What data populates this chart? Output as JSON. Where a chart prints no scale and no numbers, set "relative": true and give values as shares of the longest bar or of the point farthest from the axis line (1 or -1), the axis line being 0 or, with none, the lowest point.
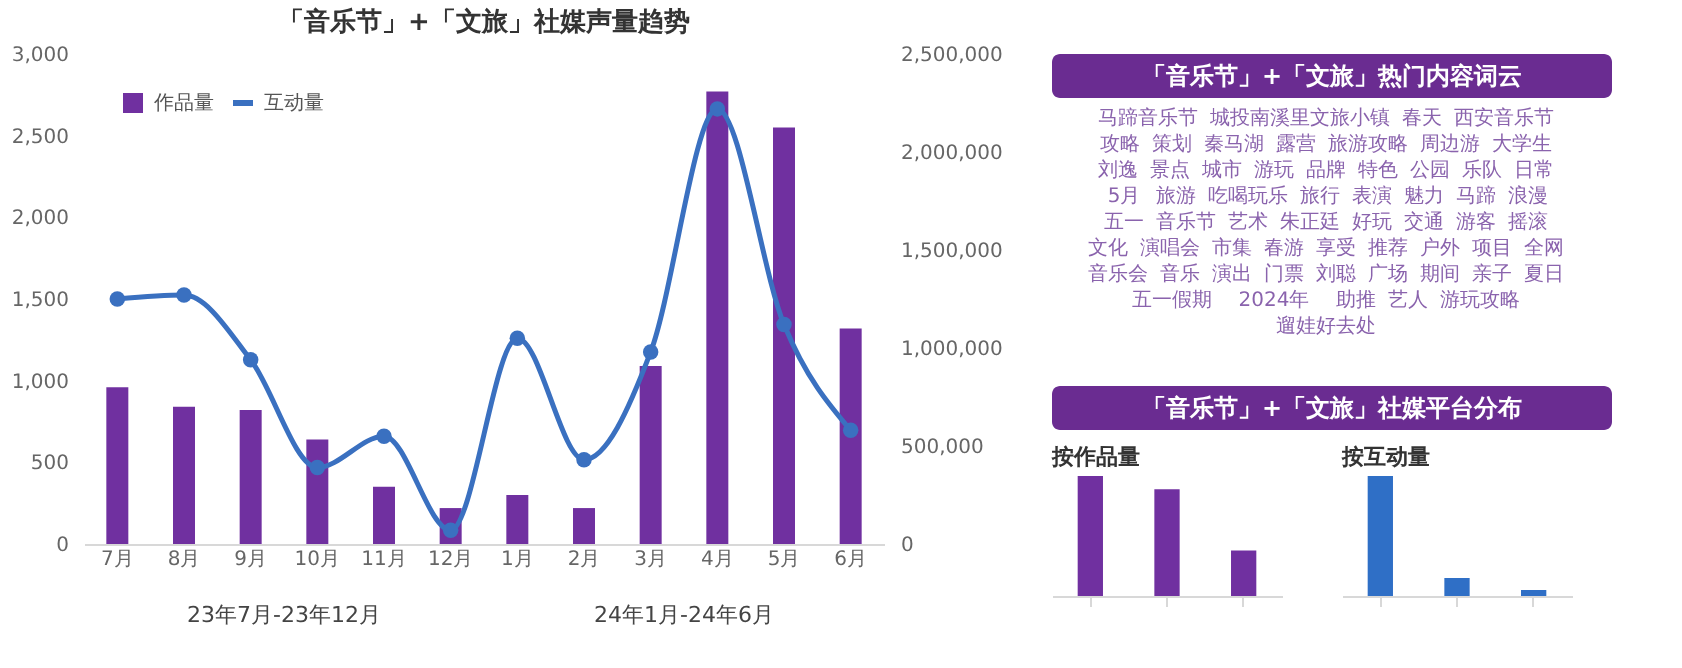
{
  "chart_data": [
    {
      "type": "bar",
      "title": "「音乐节」+「文旅」社媒声量趋势",
      "categories": [
        "7月",
        "8月",
        "9月",
        "10月",
        "11月",
        "12月",
        "1月",
        "2月",
        "3月",
        "4月",
        "5月",
        "6月"
      ],
      "series": [
        {
          "name": "作品量",
          "type": "bar",
          "color": "#7030a0",
          "values": [
            960,
            840,
            820,
            640,
            350,
            220,
            300,
            220,
            1090,
            2770,
            2550,
            1320
          ]
        },
        {
          "name": "互动量",
          "type": "line",
          "axis": "y2",
          "color": "#3a70c0",
          "values": [
            1250000,
            1270000,
            940000,
            390000,
            550000,
            70000,
            1050000,
            430000,
            980000,
            2220000,
            1120000,
            580000
          ]
        }
      ],
      "ylim": [
        0,
        3000
      ],
      "yticks": [
        0,
        500,
        {
          "value": 1000,
          "label": "1,000"
        },
        {
          "value": 1500,
          "label": "1,500"
        },
        {
          "value": 2000,
          "label": "2,000"
        },
        {
          "value": 2500,
          "label": "2,500"
        },
        {
          "value": 3000,
          "label": "3,000"
        }
      ],
      "y2lim": [
        0,
        2500000
      ],
      "y2ticks": [
        0,
        {
          "value": 500000,
          "label": "500,000"
        },
        {
          "value": 1000000,
          "label": "1,000,000"
        },
        {
          "value": 1500000,
          "label": "1,500,000"
        },
        {
          "value": 2000000,
          "label": "2,000,000"
        },
        {
          "value": 2500000,
          "label": "2,500,000"
        }
      ],
      "grid": false,
      "legend": "top left",
      "marker": "circle",
      "annotations": [
        "23年7月-23年12月",
        "24年1月-24年6月"
      ]
    },
    {
      "type": "other",
      "title": "「音乐节」+「文旅」热门内容词云",
      "annotations": [
        "马蹄音乐节",
        "城投南溪里文旅小镇",
        "春天",
        "西安音乐节",
        "攻略",
        "策划",
        "秦马湖",
        "露营",
        "旅游攻略",
        "周边游",
        "大学生",
        "刘逸",
        "景点",
        "城市",
        "游玩",
        "品牌",
        "特色",
        "公园",
        "乐队",
        "日常",
        "5月",
        "旅游",
        "吃喝玩乐",
        "旅行",
        "表演",
        "魅力",
        "马蹄",
        "浪漫",
        "五一",
        "音乐节",
        "艺术",
        "朱正廷",
        "好玩",
        "交通",
        "游客",
        "摇滚",
        "文化",
        "演唱会",
        "市集",
        "春游",
        "享受",
        "推荐",
        "户外",
        "项目",
        "全网",
        "音乐会",
        "音乐",
        "演出",
        "门票",
        "刘聪",
        "广场",
        "期间",
        "亲子",
        "夏日",
        "五一假期",
        "2024年",
        "助推",
        "艺人",
        "游玩攻略",
        "遛娃好去处"
      ]
    },
    {
      "type": "other",
      "title": "「音乐节」+「文旅」社媒平台分布"
    },
    {
      "type": "bar",
      "title": "按作品量",
      "categories": [
        null,
        null,
        null
      ],
      "relative": true,
      "color": "#7030a0",
      "values": [
        1,
        0.89,
        0.38
      ]
    },
    {
      "type": "bar",
      "title": "按互动量",
      "categories": [
        null,
        null,
        null
      ],
      "relative": true,
      "color": "#2f6fc6",
      "values": [
        1,
        0.15,
        0.05
      ]
    }
  ]
}
